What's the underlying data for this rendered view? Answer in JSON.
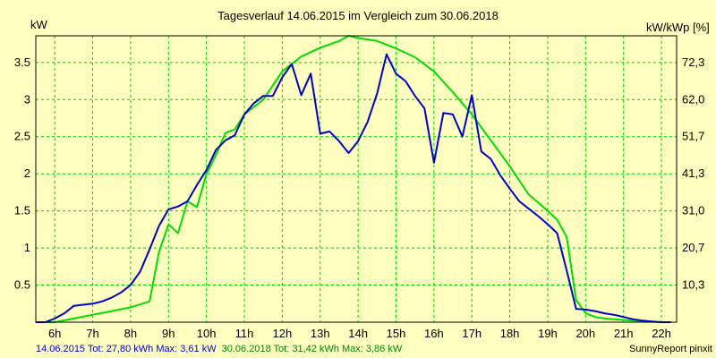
{
  "chart_data": {
    "type": "line",
    "title": "Tagesverlauf 14.06.2015 im Vergleich zum 30.06.2018",
    "ylabel_left": "kW",
    "ylabel_right": "kW/kWp [%]",
    "x_ticks": [
      "6h",
      "7h",
      "8h",
      "9h",
      "10h",
      "11h",
      "12h",
      "13h",
      "14h",
      "15h",
      "16h",
      "17h",
      "18h",
      "19h",
      "20h",
      "21h",
      "22h"
    ],
    "xlim": [
      5.5,
      22.4
    ],
    "ylim": [
      0,
      3.86
    ],
    "y_ticks_left": [
      {
        "v": 0.5,
        "label": "0.5"
      },
      {
        "v": 1,
        "label": "1"
      },
      {
        "v": 1.5,
        "label": "1.5"
      },
      {
        "v": 2,
        "label": "2"
      },
      {
        "v": 2.5,
        "label": "2.5"
      },
      {
        "v": 3,
        "label": "3"
      },
      {
        "v": 3.5,
        "label": "3.5"
      }
    ],
    "y_ticks_right": [
      {
        "v": 0.5,
        "label": "10,3"
      },
      {
        "v": 1,
        "label": "20,7"
      },
      {
        "v": 1.5,
        "label": "31,0"
      },
      {
        "v": 2,
        "label": "41,3"
      },
      {
        "v": 2.5,
        "label": "51,7"
      },
      {
        "v": 3,
        "label": "62,0"
      },
      {
        "v": 3.5,
        "label": "72,3"
      }
    ],
    "grid": true,
    "series": [
      {
        "name": "14.06.2015",
        "color": "#0000CC",
        "x": [
          5.5,
          5.75,
          6.0,
          6.25,
          6.5,
          7.0,
          7.25,
          7.5,
          7.75,
          8.0,
          8.25,
          8.5,
          8.75,
          9.0,
          9.25,
          9.5,
          9.75,
          10.0,
          10.25,
          10.5,
          10.75,
          11.0,
          11.25,
          11.5,
          11.75,
          12.0,
          12.25,
          12.5,
          12.75,
          13.0,
          13.25,
          13.5,
          13.75,
          14.0,
          14.25,
          14.5,
          14.75,
          15.0,
          15.25,
          15.5,
          15.75,
          16.0,
          16.25,
          16.5,
          16.75,
          17.0,
          17.25,
          17.5,
          17.75,
          18.0,
          18.25,
          18.5,
          18.75,
          19.0,
          19.25,
          19.5,
          19.75,
          20.0,
          20.25,
          20.5,
          20.75,
          21.0,
          21.25,
          21.5,
          21.75,
          22.0,
          22.25
        ],
        "values": [
          0,
          0,
          0.05,
          0.12,
          0.22,
          0.25,
          0.28,
          0.33,
          0.4,
          0.5,
          0.68,
          0.98,
          1.3,
          1.52,
          1.56,
          1.63,
          1.85,
          2.05,
          2.32,
          2.45,
          2.52,
          2.8,
          2.95,
          3.05,
          3.05,
          3.3,
          3.48,
          3.06,
          3.35,
          2.54,
          2.57,
          2.44,
          2.28,
          2.44,
          2.7,
          3.08,
          3.61,
          3.35,
          3.25,
          3.05,
          2.88,
          2.15,
          2.82,
          2.8,
          2.5,
          3.06,
          2.3,
          2.2,
          1.98,
          1.8,
          1.63,
          1.53,
          1.43,
          1.32,
          1.2,
          0.7,
          0.18,
          0.17,
          0.15,
          0.12,
          0.1,
          0.07,
          0.04,
          0.02,
          0.01,
          0,
          0
        ]
      },
      {
        "name": "30.06.2018",
        "color": "#00DD00",
        "x": [
          5.5,
          6.0,
          6.5,
          7.0,
          7.5,
          8.0,
          8.5,
          8.75,
          9.0,
          9.25,
          9.5,
          9.75,
          10.0,
          10.25,
          10.5,
          10.75,
          11.0,
          11.5,
          12.0,
          12.5,
          13.0,
          13.5,
          13.75,
          14.0,
          14.5,
          15.0,
          15.5,
          16.0,
          16.5,
          17.0,
          17.5,
          18.0,
          18.5,
          19.0,
          19.25,
          19.5,
          19.75,
          20.0,
          20.25,
          20.5,
          21.0,
          21.5,
          22.0,
          22.25
        ],
        "values": [
          0,
          0,
          0.05,
          0.1,
          0.15,
          0.2,
          0.28,
          0.95,
          1.32,
          1.2,
          1.63,
          1.55,
          2.0,
          2.25,
          2.55,
          2.6,
          2.8,
          3.0,
          3.38,
          3.58,
          3.7,
          3.79,
          3.86,
          3.83,
          3.79,
          3.69,
          3.57,
          3.38,
          3.1,
          2.8,
          2.45,
          2.1,
          1.72,
          1.5,
          1.38,
          1.15,
          0.3,
          0.12,
          0.07,
          0.05,
          0.03,
          0.01,
          0,
          0
        ]
      }
    ]
  },
  "footer": {
    "series1_text": "14.06.2015 Tot: 27,80 kWh Max: 3,61 kW",
    "series2_text": "30.06.2018 Tot: 31,42 kWh Max: 3,86 kW",
    "series1_color": "#0000CC",
    "series2_color": "#008800",
    "credit": "SunnyReport pinxit"
  },
  "colors": {
    "background": "#FFFFC0",
    "grid": "#00CC00",
    "axis": "#000000"
  }
}
